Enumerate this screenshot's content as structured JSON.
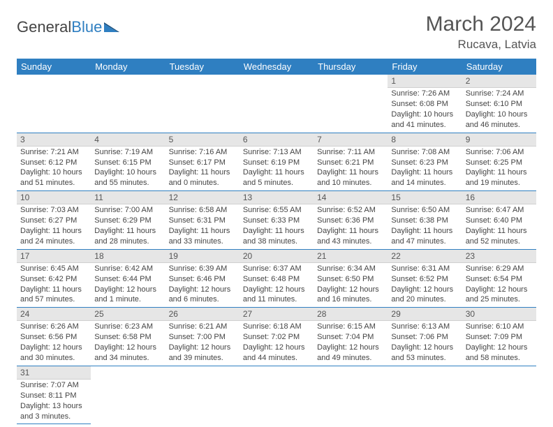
{
  "logo": {
    "part1": "General",
    "part2": "Blue"
  },
  "title": "March 2024",
  "location": "Rucava, Latvia",
  "colors": {
    "brand": "#2f7fc1",
    "dayHeaderBg": "#e6e6e6",
    "text": "#444"
  },
  "weekdays": [
    "Sunday",
    "Monday",
    "Tuesday",
    "Wednesday",
    "Thursday",
    "Friday",
    "Saturday"
  ],
  "firstWeekday": 5,
  "days": [
    {
      "n": "1",
      "sr": "Sunrise: 7:26 AM",
      "ss": "Sunset: 6:08 PM",
      "dl1": "Daylight: 10 hours",
      "dl2": "and 41 minutes."
    },
    {
      "n": "2",
      "sr": "Sunrise: 7:24 AM",
      "ss": "Sunset: 6:10 PM",
      "dl1": "Daylight: 10 hours",
      "dl2": "and 46 minutes."
    },
    {
      "n": "3",
      "sr": "Sunrise: 7:21 AM",
      "ss": "Sunset: 6:12 PM",
      "dl1": "Daylight: 10 hours",
      "dl2": "and 51 minutes."
    },
    {
      "n": "4",
      "sr": "Sunrise: 7:19 AM",
      "ss": "Sunset: 6:15 PM",
      "dl1": "Daylight: 10 hours",
      "dl2": "and 55 minutes."
    },
    {
      "n": "5",
      "sr": "Sunrise: 7:16 AM",
      "ss": "Sunset: 6:17 PM",
      "dl1": "Daylight: 11 hours",
      "dl2": "and 0 minutes."
    },
    {
      "n": "6",
      "sr": "Sunrise: 7:13 AM",
      "ss": "Sunset: 6:19 PM",
      "dl1": "Daylight: 11 hours",
      "dl2": "and 5 minutes."
    },
    {
      "n": "7",
      "sr": "Sunrise: 7:11 AM",
      "ss": "Sunset: 6:21 PM",
      "dl1": "Daylight: 11 hours",
      "dl2": "and 10 minutes."
    },
    {
      "n": "8",
      "sr": "Sunrise: 7:08 AM",
      "ss": "Sunset: 6:23 PM",
      "dl1": "Daylight: 11 hours",
      "dl2": "and 14 minutes."
    },
    {
      "n": "9",
      "sr": "Sunrise: 7:06 AM",
      "ss": "Sunset: 6:25 PM",
      "dl1": "Daylight: 11 hours",
      "dl2": "and 19 minutes."
    },
    {
      "n": "10",
      "sr": "Sunrise: 7:03 AM",
      "ss": "Sunset: 6:27 PM",
      "dl1": "Daylight: 11 hours",
      "dl2": "and 24 minutes."
    },
    {
      "n": "11",
      "sr": "Sunrise: 7:00 AM",
      "ss": "Sunset: 6:29 PM",
      "dl1": "Daylight: 11 hours",
      "dl2": "and 28 minutes."
    },
    {
      "n": "12",
      "sr": "Sunrise: 6:58 AM",
      "ss": "Sunset: 6:31 PM",
      "dl1": "Daylight: 11 hours",
      "dl2": "and 33 minutes."
    },
    {
      "n": "13",
      "sr": "Sunrise: 6:55 AM",
      "ss": "Sunset: 6:33 PM",
      "dl1": "Daylight: 11 hours",
      "dl2": "and 38 minutes."
    },
    {
      "n": "14",
      "sr": "Sunrise: 6:52 AM",
      "ss": "Sunset: 6:36 PM",
      "dl1": "Daylight: 11 hours",
      "dl2": "and 43 minutes."
    },
    {
      "n": "15",
      "sr": "Sunrise: 6:50 AM",
      "ss": "Sunset: 6:38 PM",
      "dl1": "Daylight: 11 hours",
      "dl2": "and 47 minutes."
    },
    {
      "n": "16",
      "sr": "Sunrise: 6:47 AM",
      "ss": "Sunset: 6:40 PM",
      "dl1": "Daylight: 11 hours",
      "dl2": "and 52 minutes."
    },
    {
      "n": "17",
      "sr": "Sunrise: 6:45 AM",
      "ss": "Sunset: 6:42 PM",
      "dl1": "Daylight: 11 hours",
      "dl2": "and 57 minutes."
    },
    {
      "n": "18",
      "sr": "Sunrise: 6:42 AM",
      "ss": "Sunset: 6:44 PM",
      "dl1": "Daylight: 12 hours",
      "dl2": "and 1 minute."
    },
    {
      "n": "19",
      "sr": "Sunrise: 6:39 AM",
      "ss": "Sunset: 6:46 PM",
      "dl1": "Daylight: 12 hours",
      "dl2": "and 6 minutes."
    },
    {
      "n": "20",
      "sr": "Sunrise: 6:37 AM",
      "ss": "Sunset: 6:48 PM",
      "dl1": "Daylight: 12 hours",
      "dl2": "and 11 minutes."
    },
    {
      "n": "21",
      "sr": "Sunrise: 6:34 AM",
      "ss": "Sunset: 6:50 PM",
      "dl1": "Daylight: 12 hours",
      "dl2": "and 16 minutes."
    },
    {
      "n": "22",
      "sr": "Sunrise: 6:31 AM",
      "ss": "Sunset: 6:52 PM",
      "dl1": "Daylight: 12 hours",
      "dl2": "and 20 minutes."
    },
    {
      "n": "23",
      "sr": "Sunrise: 6:29 AM",
      "ss": "Sunset: 6:54 PM",
      "dl1": "Daylight: 12 hours",
      "dl2": "and 25 minutes."
    },
    {
      "n": "24",
      "sr": "Sunrise: 6:26 AM",
      "ss": "Sunset: 6:56 PM",
      "dl1": "Daylight: 12 hours",
      "dl2": "and 30 minutes."
    },
    {
      "n": "25",
      "sr": "Sunrise: 6:23 AM",
      "ss": "Sunset: 6:58 PM",
      "dl1": "Daylight: 12 hours",
      "dl2": "and 34 minutes."
    },
    {
      "n": "26",
      "sr": "Sunrise: 6:21 AM",
      "ss": "Sunset: 7:00 PM",
      "dl1": "Daylight: 12 hours",
      "dl2": "and 39 minutes."
    },
    {
      "n": "27",
      "sr": "Sunrise: 6:18 AM",
      "ss": "Sunset: 7:02 PM",
      "dl1": "Daylight: 12 hours",
      "dl2": "and 44 minutes."
    },
    {
      "n": "28",
      "sr": "Sunrise: 6:15 AM",
      "ss": "Sunset: 7:04 PM",
      "dl1": "Daylight: 12 hours",
      "dl2": "and 49 minutes."
    },
    {
      "n": "29",
      "sr": "Sunrise: 6:13 AM",
      "ss": "Sunset: 7:06 PM",
      "dl1": "Daylight: 12 hours",
      "dl2": "and 53 minutes."
    },
    {
      "n": "30",
      "sr": "Sunrise: 6:10 AM",
      "ss": "Sunset: 7:09 PM",
      "dl1": "Daylight: 12 hours",
      "dl2": "and 58 minutes."
    },
    {
      "n": "31",
      "sr": "Sunrise: 7:07 AM",
      "ss": "Sunset: 8:11 PM",
      "dl1": "Daylight: 13 hours",
      "dl2": "and 3 minutes."
    }
  ]
}
